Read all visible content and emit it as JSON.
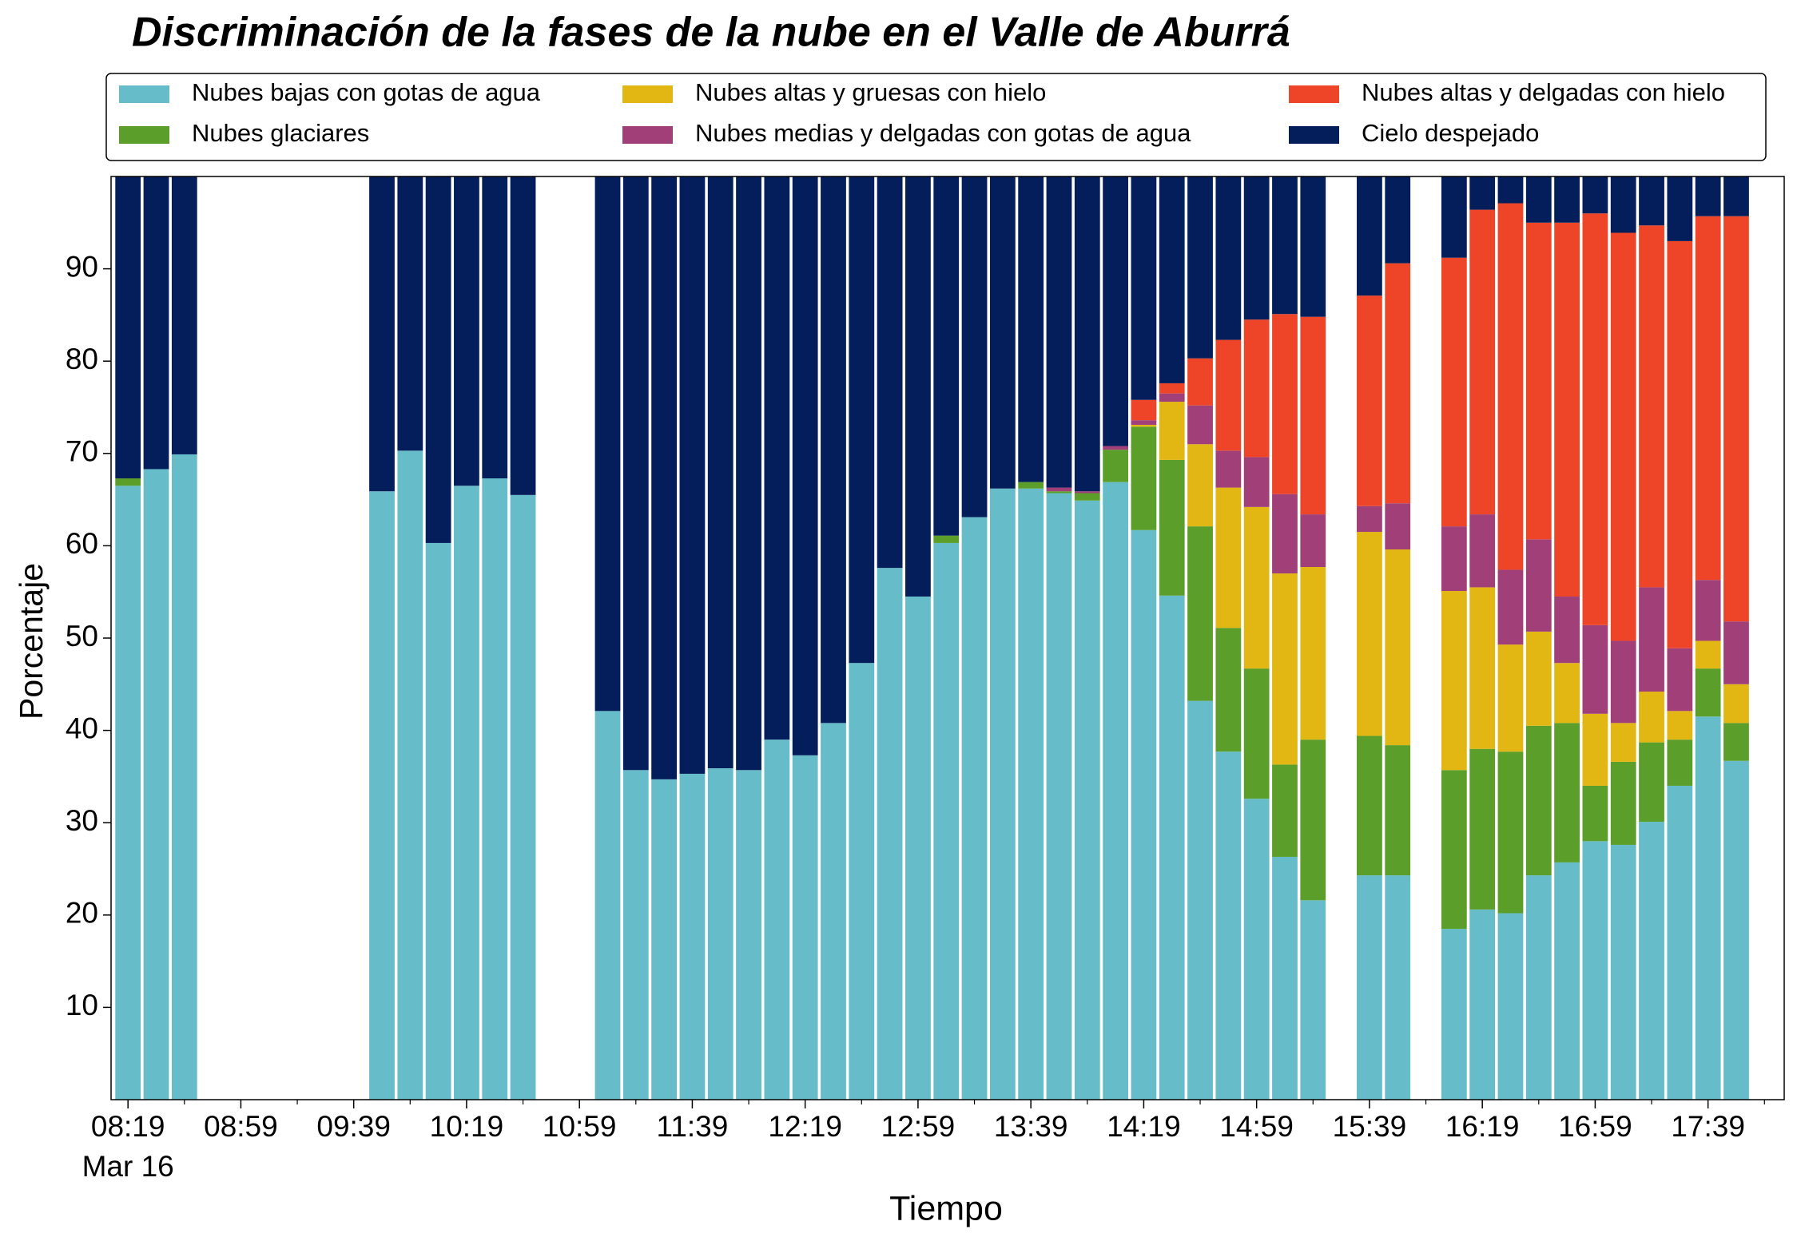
{
  "chart_data": {
    "type": "stacked_bar",
    "title": "Discriminación de la fases de la nube en el Valle de Aburrá",
    "xlabel": "Tiempo",
    "ylabel": "Porcentaje",
    "x_date_label": "Mar 16",
    "x": [
      "08:19",
      "08:29",
      "08:39",
      "09:49",
      "09:59",
      "10:09",
      "10:19",
      "10:29",
      "10:39",
      "11:09",
      "11:19",
      "11:29",
      "11:39",
      "11:49",
      "11:59",
      "12:09",
      "12:19",
      "12:29",
      "12:39",
      "12:49",
      "12:59",
      "13:09",
      "13:19",
      "13:29",
      "13:39",
      "13:49",
      "13:59",
      "14:09",
      "14:19",
      "14:29",
      "14:39",
      "14:49",
      "14:59",
      "15:09",
      "15:19",
      "15:39",
      "15:49",
      "16:09",
      "16:19",
      "16:29",
      "16:39",
      "16:49",
      "16:59",
      "17:09",
      "17:19",
      "17:29",
      "17:39",
      "17:49"
    ],
    "series": [
      {
        "name": "Nubes bajas con gotas de agua",
        "color": "#66bdc9",
        "values": [
          66.5,
          68.3,
          69.9,
          65.9,
          70.3,
          60.3,
          66.5,
          67.3,
          65.5,
          42.1,
          35.7,
          34.7,
          35.3,
          35.9,
          35.7,
          39.0,
          37.3,
          40.8,
          47.3,
          57.6,
          54.5,
          60.3,
          63.1,
          66.2,
          66.2,
          65.7,
          64.9,
          66.9,
          61.7,
          54.6,
          43.2,
          37.7,
          32.6,
          26.3,
          21.6,
          24.3,
          24.3,
          18.5,
          20.6,
          20.2,
          24.3,
          25.7,
          28.0,
          27.6,
          30.1,
          34.0,
          41.5,
          36.7
        ]
      },
      {
        "name": "Nubes glaciares",
        "color": "#5b9e2a",
        "values": [
          0.8,
          0,
          0,
          0,
          0,
          0,
          0,
          0,
          0,
          0,
          0,
          0,
          0,
          0,
          0,
          0,
          0,
          0,
          0,
          0,
          0,
          0.8,
          0,
          0,
          0.7,
          0.2,
          0.8,
          3.5,
          11.2,
          14.7,
          18.9,
          13.4,
          14.1,
          10.0,
          17.4,
          15.1,
          14.1,
          17.2,
          17.4,
          17.5,
          16.2,
          15.1,
          6.0,
          9.0,
          8.6,
          5.0,
          5.2,
          4.1
        ]
      },
      {
        "name": "Nubes altas y gruesas con hielo",
        "color": "#e2b613",
        "values": [
          0,
          0,
          0,
          0,
          0,
          0,
          0,
          0,
          0,
          0,
          0,
          0,
          0,
          0,
          0,
          0,
          0,
          0,
          0,
          0,
          0,
          0,
          0,
          0,
          0,
          0,
          0,
          0,
          0.2,
          6.3,
          8.9,
          15.2,
          17.5,
          20.7,
          18.7,
          22.1,
          21.2,
          19.4,
          17.5,
          11.6,
          10.2,
          6.5,
          7.8,
          4.2,
          5.5,
          3.1,
          3.0,
          4.2
        ]
      },
      {
        "name": "Nubes medias y delgadas con gotas de agua",
        "color": "#a03f78",
        "values": [
          0,
          0,
          0,
          0,
          0,
          0,
          0,
          0,
          0,
          0,
          0,
          0,
          0,
          0,
          0,
          0,
          0,
          0,
          0,
          0,
          0,
          0,
          0,
          0,
          0,
          0.4,
          0.2,
          0.4,
          0.5,
          0.9,
          4.2,
          4.0,
          5.4,
          8.6,
          5.7,
          2.8,
          5.0,
          7.0,
          7.9,
          8.1,
          10.0,
          7.2,
          9.6,
          8.9,
          11.3,
          6.8,
          6.6,
          6.8
        ]
      },
      {
        "name": "Nubes altas y delgadas con hielo",
        "color": "#ee4528",
        "values": [
          0,
          0,
          0,
          0,
          0,
          0,
          0,
          0,
          0,
          0,
          0,
          0,
          0,
          0,
          0,
          0,
          0,
          0,
          0,
          0,
          0,
          0,
          0,
          0,
          0,
          0,
          0,
          0,
          2.2,
          1.1,
          5.1,
          12.0,
          14.9,
          19.5,
          21.4,
          22.8,
          26.0,
          29.1,
          33.0,
          39.7,
          34.3,
          40.5,
          44.6,
          44.2,
          39.2,
          44.1,
          39.4,
          43.9
        ]
      },
      {
        "name": "Cielo despejado",
        "color": "#041e5c",
        "values": [
          32.7,
          31.7,
          30.1,
          34.1,
          29.7,
          39.7,
          33.5,
          32.7,
          34.5,
          57.9,
          64.3,
          65.3,
          64.7,
          64.1,
          64.3,
          61.0,
          62.7,
          59.2,
          52.7,
          42.4,
          45.5,
          38.9,
          36.9,
          33.8,
          33.1,
          33.7,
          34.1,
          29.2,
          24.2,
          22.4,
          19.7,
          17.7,
          15.5,
          14.9,
          15.2,
          12.9,
          9.4,
          8.8,
          3.6,
          2.9,
          5.0,
          5.0,
          4.0,
          6.1,
          5.3,
          7.0,
          4.3,
          4.3
        ]
      }
    ],
    "xlim": [
      "08:13",
      "18:06"
    ],
    "xticks": [
      "08:19",
      "08:59",
      "09:39",
      "10:19",
      "10:59",
      "11:39",
      "12:19",
      "12:59",
      "13:39",
      "14:19",
      "14:59",
      "15:39",
      "16:19",
      "16:59",
      "17:39"
    ],
    "xminorticks": [
      "08:39",
      "09:19",
      "09:59",
      "10:39",
      "11:19",
      "11:59",
      "12:39",
      "13:19",
      "13:59",
      "14:39",
      "15:19",
      "15:59",
      "16:39",
      "17:19",
      "17:59"
    ],
    "bar_minutes": 10,
    "ylim": [
      0,
      100
    ],
    "yticks": [
      10,
      20,
      30,
      40,
      50,
      60,
      70,
      80,
      90
    ]
  }
}
